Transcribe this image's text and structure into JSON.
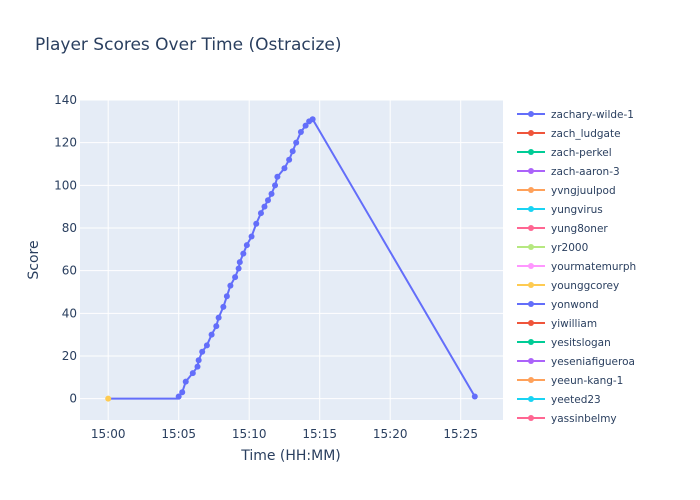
{
  "chart_data": {
    "type": "line",
    "title": "Player Scores Over Time (Ostracize)",
    "xlabel": "Time (HH:MM)",
    "ylabel": "Score",
    "xlim": [
      "14:58",
      "15:28"
    ],
    "ylim": [
      -10,
      140
    ],
    "x_ticks": [
      "15:00",
      "15:05",
      "15:10",
      "15:15",
      "15:20",
      "15:25"
    ],
    "y_ticks": [
      0,
      20,
      40,
      60,
      80,
      100,
      120,
      140
    ],
    "grid": true,
    "legend_position": "right",
    "series": [
      {
        "name": "zachary-wilde-1",
        "color": "#636efa",
        "points": [
          [
            "15:00",
            0
          ],
          [
            "15:05",
            0
          ],
          [
            "15:05",
            1
          ],
          [
            "15:05:15",
            3
          ],
          [
            "15:05:30",
            8
          ],
          [
            "15:06",
            12
          ],
          [
            "15:06:20",
            15
          ],
          [
            "15:06:25",
            18
          ],
          [
            "15:06:40",
            22
          ],
          [
            "15:07",
            25
          ],
          [
            "15:07:20",
            30
          ],
          [
            "15:07:40",
            34
          ],
          [
            "15:07:50",
            38
          ],
          [
            "15:08:10",
            43
          ],
          [
            "15:08:25",
            48
          ],
          [
            "15:08:40",
            53
          ],
          [
            "15:09",
            57
          ],
          [
            "15:09:15",
            61
          ],
          [
            "15:09:20",
            64
          ],
          [
            "15:09:35",
            68
          ],
          [
            "15:09:50",
            72
          ],
          [
            "15:10:10",
            76
          ],
          [
            "15:10:30",
            82
          ],
          [
            "15:10:50",
            87
          ],
          [
            "15:11:05",
            90
          ],
          [
            "15:11:20",
            93
          ],
          [
            "15:11:35",
            96
          ],
          [
            "15:11:50",
            100
          ],
          [
            "15:12",
            104
          ],
          [
            "15:12:30",
            108
          ],
          [
            "15:12:50",
            112
          ],
          [
            "15:13:05",
            116
          ],
          [
            "15:13:20",
            120
          ],
          [
            "15:13:40",
            125
          ],
          [
            "15:14",
            128
          ],
          [
            "15:14:15",
            130
          ],
          [
            "15:14:30",
            131
          ],
          [
            "15:26",
            1
          ]
        ]
      },
      {
        "name": "zach_ludgate",
        "color": "#ef553b",
        "points": []
      },
      {
        "name": "zach-perkel",
        "color": "#00cc96",
        "points": []
      },
      {
        "name": "zach-aaron-3",
        "color": "#ab63fa",
        "points": []
      },
      {
        "name": "yvngjuulpod",
        "color": "#ffa15a",
        "points": []
      },
      {
        "name": "yungvirus",
        "color": "#19d3f3",
        "points": []
      },
      {
        "name": "yung8oner",
        "color": "#ff6692",
        "points": []
      },
      {
        "name": "yr2000",
        "color": "#b6e880",
        "points": []
      },
      {
        "name": "yourmatemurph",
        "color": "#ff97ff",
        "points": []
      },
      {
        "name": "younggcorey",
        "color": "#fecb52",
        "points": [
          [
            "15:00",
            0
          ]
        ]
      },
      {
        "name": "yonwond",
        "color": "#636efa",
        "points": []
      },
      {
        "name": "yiwilliam",
        "color": "#ef553b",
        "points": []
      },
      {
        "name": "yesitslogan",
        "color": "#00cc96",
        "points": []
      },
      {
        "name": "yeseniafigueroa",
        "color": "#ab63fa",
        "points": []
      },
      {
        "name": "yeeun-kang-1",
        "color": "#ffa15a",
        "points": []
      },
      {
        "name": "yeeted23",
        "color": "#19d3f3",
        "points": []
      },
      {
        "name": "yassinbelmy",
        "color": "#ff6692",
        "points": []
      }
    ]
  }
}
